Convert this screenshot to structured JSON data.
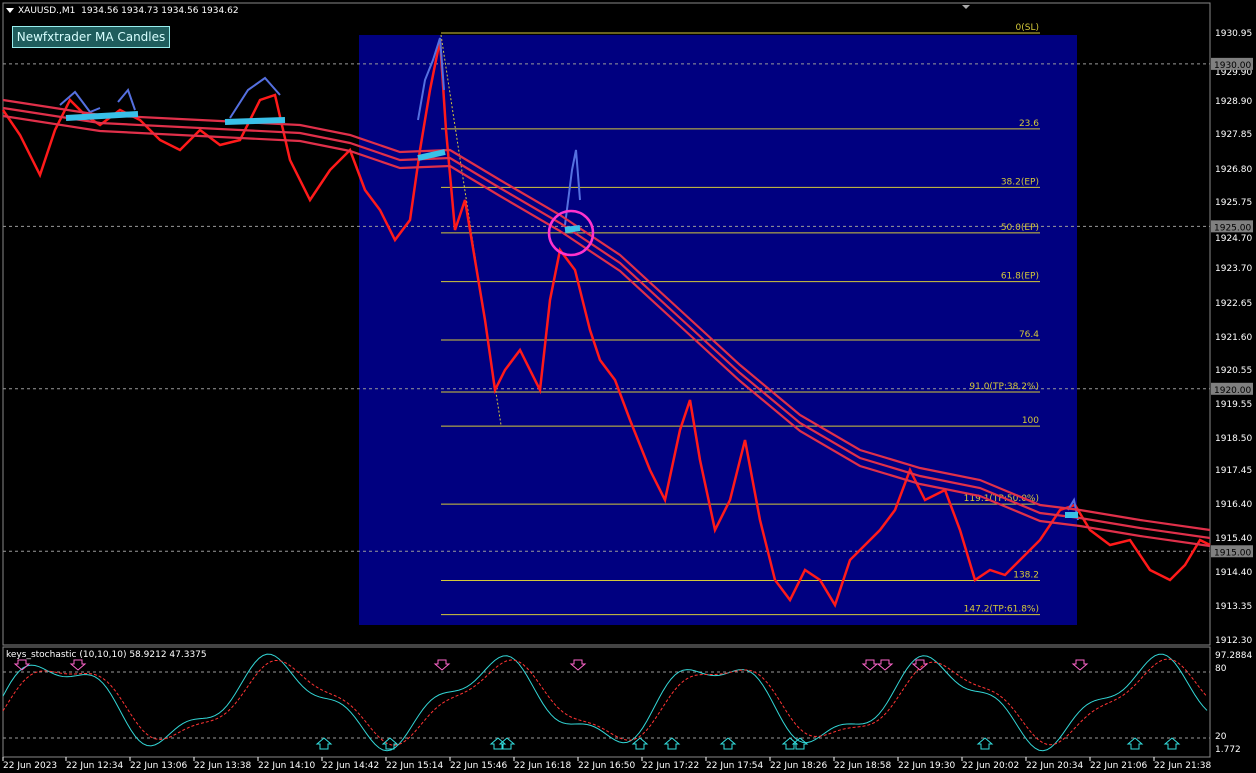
{
  "header": {
    "symbol": "XAUUSD.,M1",
    "ohlc": "1934.56 1934.73 1934.56 1934.62"
  },
  "indicator_button": {
    "label": "Newfxtrader MA Candles"
  },
  "price_axis": {
    "labels": [
      "1930.95",
      "1929.90",
      "1928.90",
      "1927.85",
      "1926.80",
      "1925.75",
      "1924.70",
      "1923.70",
      "1922.65",
      "1921.60",
      "1920.55",
      "1919.55",
      "1918.50",
      "1917.45",
      "1916.40",
      "1915.40",
      "1914.40",
      "1913.35",
      "1912.30"
    ],
    "highlight_boxes": [
      "1930.00",
      "1925.00",
      "1920.00",
      "1915.00"
    ]
  },
  "time_axis": [
    "22 Jun 2023",
    "22 Jun 12:34",
    "22 Jun 13:06",
    "22 Jun 13:38",
    "22 Jun 14:10",
    "22 Jun 14:42",
    "22 Jun 15:14",
    "22 Jun 15:46",
    "22 Jun 16:18",
    "22 Jun 16:50",
    "22 Jun 17:22",
    "22 Jun 17:54",
    "22 Jun 18:26",
    "22 Jun 18:58",
    "22 Jun 19:30",
    "22 Jun 20:02",
    "22 Jun 20:34",
    "22 Jun 21:06",
    "22 Jun 21:38"
  ],
  "fib_levels": [
    {
      "label": "0(SL)",
      "price": 1930.95
    },
    {
      "label": "23.6",
      "price": 1928.0
    },
    {
      "label": "38.2(EP)",
      "price": 1926.2
    },
    {
      "label": "50.0(EP)",
      "price": 1924.8
    },
    {
      "label": "61.8(EP)",
      "price": 1923.3
    },
    {
      "label": "76.4",
      "price": 1921.5
    },
    {
      "label": "91.0(TP:38.2%)",
      "price": 1919.9
    },
    {
      "label": "100",
      "price": 1918.85
    },
    {
      "label": "119.1(TP:50.0%)",
      "price": 1916.45
    },
    {
      "label": "138.2",
      "price": 1914.1
    },
    {
      "label": "147.2(TP:61.8%)",
      "price": 1913.05
    }
  ],
  "oscillator": {
    "label": "keys_stochastic (10,10,10) 58.9212 47.3375",
    "axis_labels": [
      "97.2884",
      "80",
      "20",
      "1.772"
    ],
    "upper_level": 80,
    "lower_level": 20
  },
  "colors": {
    "fib_zone": "#000080",
    "fib_line": "#d4c83a",
    "bear": "#ff1a1a",
    "bull": "#5570e0",
    "ma": "#e0304a",
    "ma_bull": "#39c0e8",
    "circle": "#ff33cc",
    "stoch_main": "#33d6d6",
    "stoch_signal": "#ff3333"
  }
}
